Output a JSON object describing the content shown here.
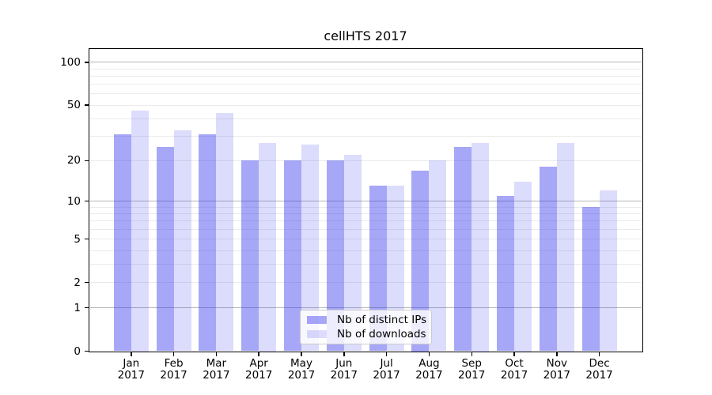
{
  "title": "cellHTS 2017",
  "chart_data": {
    "type": "bar",
    "title": "cellHTS 2017",
    "categories": [
      "Jan",
      "Feb",
      "Mar",
      "Apr",
      "May",
      "Jun",
      "Jul",
      "Aug",
      "Sep",
      "Oct",
      "Nov",
      "Dec"
    ],
    "year_label": "2017",
    "series": [
      {
        "name": "Nb of distinct IPs",
        "color": "rgba(60,60,240,0.45)",
        "values": [
          31,
          25,
          31,
          20,
          20,
          20,
          13,
          17,
          25,
          11,
          18,
          9
        ]
      },
      {
        "name": "Nb of downloads",
        "color": "rgba(60,60,240,0.18)",
        "values": [
          46,
          33,
          44,
          27,
          26,
          22,
          13,
          20,
          27,
          14,
          27,
          12
        ]
      }
    ],
    "xlabel": "",
    "ylabel": "",
    "scale": "log1p",
    "ylim": [
      0,
      124
    ],
    "yticks": [
      0,
      1,
      2,
      5,
      10,
      20,
      50,
      100
    ],
    "minor_gridlines": [
      2,
      3,
      4,
      5,
      6,
      7,
      8,
      9,
      20,
      30,
      40,
      50,
      60,
      70,
      80,
      90
    ],
    "major_gridlines": [
      1,
      10,
      100
    ],
    "grid": true,
    "legend_position": "lower center"
  },
  "colors": {
    "background": "#ffffff",
    "axis": "#000000",
    "minor_grid": "#ebebeb",
    "major_grid": "#b5b5b5",
    "bar_distinct_ips_on_white": "#a7a7f8",
    "bar_downloads_on_white": "#dbdbf8"
  }
}
